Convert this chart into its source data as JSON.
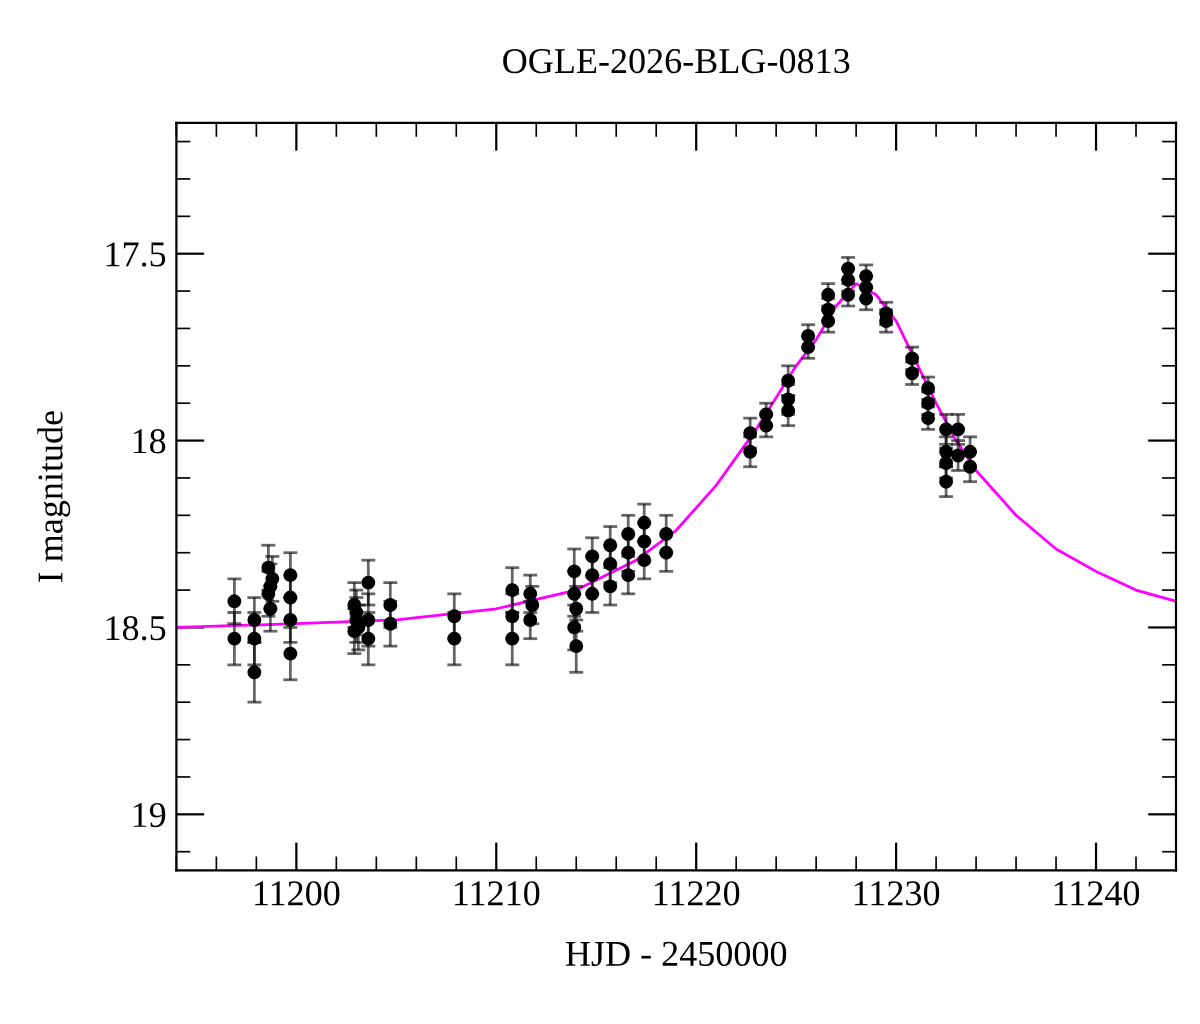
{
  "chart_data": {
    "type": "scatter",
    "title": "OGLE-2026-BLG-0813",
    "xlabel": "HJD - 2450000",
    "ylabel": "I magnitude",
    "xlim": [
      11194,
      11244
    ],
    "xticks": [
      11200,
      11210,
      11220,
      11230,
      11240
    ],
    "ylim": [
      19.15,
      17.15
    ],
    "yticks": [
      17.5,
      18,
      18.5,
      19
    ],
    "grid": false,
    "legend": false,
    "marker": "circle",
    "series": [
      {
        "color": "#000000",
        "x": [
          11196.9,
          11196.9,
          11197.9,
          11197.9,
          11197.9,
          11198.6,
          11198.7,
          11198.8,
          11198.7,
          11198.6,
          11199.7,
          11199.7,
          11199.7,
          11199.7,
          11202.9,
          11203.0,
          11202.9,
          11203.1,
          11203.0,
          11203.6,
          11203.6,
          11203.6,
          11204.7,
          11204.7,
          11207.9,
          11207.9,
          11210.8,
          11210.8,
          11210.8,
          11211.7,
          11211.8,
          11211.7,
          11213.9,
          11213.9,
          11214.0,
          11213.9,
          11214.0,
          11214.8,
          11214.8,
          11214.8,
          11215.7,
          11215.7,
          11215.7,
          11216.6,
          11216.6,
          11216.6,
          11217.4,
          11217.4,
          11217.4,
          11218.5,
          11218.5,
          11222.7,
          11222.7,
          11223.5,
          11223.5,
          11224.6,
          11224.6,
          11224.6,
          11225.6,
          11225.6,
          11226.6,
          11226.6,
          11226.6,
          11227.6,
          11227.6,
          11227.6,
          11228.5,
          11228.5,
          11228.5,
          11229.5,
          11229.5,
          11230.8,
          11230.8,
          11231.6,
          11231.6,
          11231.6,
          11232.5,
          11232.5,
          11232.5,
          11232.5,
          11233.1,
          11233.1,
          11233.7,
          11233.7
        ],
        "values": [
          18.43,
          18.53,
          18.48,
          18.53,
          18.62,
          18.41,
          18.39,
          18.37,
          18.45,
          18.34,
          18.42,
          18.36,
          18.48,
          18.57,
          18.44,
          18.46,
          18.51,
          18.5,
          18.48,
          18.38,
          18.48,
          18.53,
          18.44,
          18.49,
          18.47,
          18.53,
          18.4,
          18.47,
          18.53,
          18.41,
          18.44,
          18.48,
          18.35,
          18.41,
          18.45,
          18.5,
          18.55,
          18.31,
          18.36,
          18.41,
          18.28,
          18.33,
          18.39,
          18.25,
          18.3,
          18.36,
          18.22,
          18.27,
          18.32,
          18.25,
          18.3,
          17.98,
          18.03,
          17.93,
          17.96,
          17.84,
          17.89,
          17.92,
          17.75,
          17.72,
          17.65,
          17.68,
          17.61,
          17.54,
          17.57,
          17.61,
          17.56,
          17.59,
          17.62,
          17.66,
          17.68,
          17.78,
          17.82,
          17.86,
          17.9,
          17.94,
          17.97,
          18.03,
          18.06,
          18.11,
          17.97,
          18.04,
          18.03,
          18.07
        ],
        "errors": [
          0.06,
          0.07,
          0.06,
          0.07,
          0.08,
          0.06,
          0.06,
          0.06,
          0.06,
          0.06,
          0.06,
          0.06,
          0.06,
          0.07,
          0.06,
          0.06,
          0.06,
          0.06,
          0.06,
          0.06,
          0.07,
          0.07,
          0.06,
          0.06,
          0.06,
          0.07,
          0.06,
          0.06,
          0.07,
          0.05,
          0.05,
          0.05,
          0.06,
          0.06,
          0.06,
          0.06,
          0.07,
          0.05,
          0.05,
          0.05,
          0.05,
          0.05,
          0.05,
          0.05,
          0.05,
          0.05,
          0.05,
          0.05,
          0.05,
          0.05,
          0.05,
          0.04,
          0.04,
          0.03,
          0.03,
          0.04,
          0.04,
          0.04,
          0.03,
          0.03,
          0.03,
          0.03,
          0.03,
          0.03,
          0.03,
          0.03,
          0.03,
          0.03,
          0.03,
          0.03,
          0.03,
          0.03,
          0.03,
          0.03,
          0.03,
          0.03,
          0.04,
          0.04,
          0.04,
          0.04,
          0.04,
          0.04,
          0.04,
          0.04
        ]
      },
      {
        "type": "line",
        "color": "#ff00ff",
        "marker": "none",
        "x": [
          11194,
          11200,
          11205,
          11210,
          11214,
          11217,
          11219,
          11221,
          11223,
          11225,
          11226,
          11227,
          11228,
          11229,
          11230,
          11231,
          11232,
          11233,
          11234,
          11236,
          11238,
          11240,
          11242,
          11244
        ],
        "values": [
          18.5,
          18.49,
          18.48,
          18.45,
          18.4,
          18.32,
          18.24,
          18.12,
          17.97,
          17.8,
          17.73,
          17.64,
          17.58,
          17.61,
          17.68,
          17.79,
          17.9,
          18.0,
          18.08,
          18.2,
          18.29,
          18.35,
          18.4,
          18.43
        ]
      }
    ]
  }
}
